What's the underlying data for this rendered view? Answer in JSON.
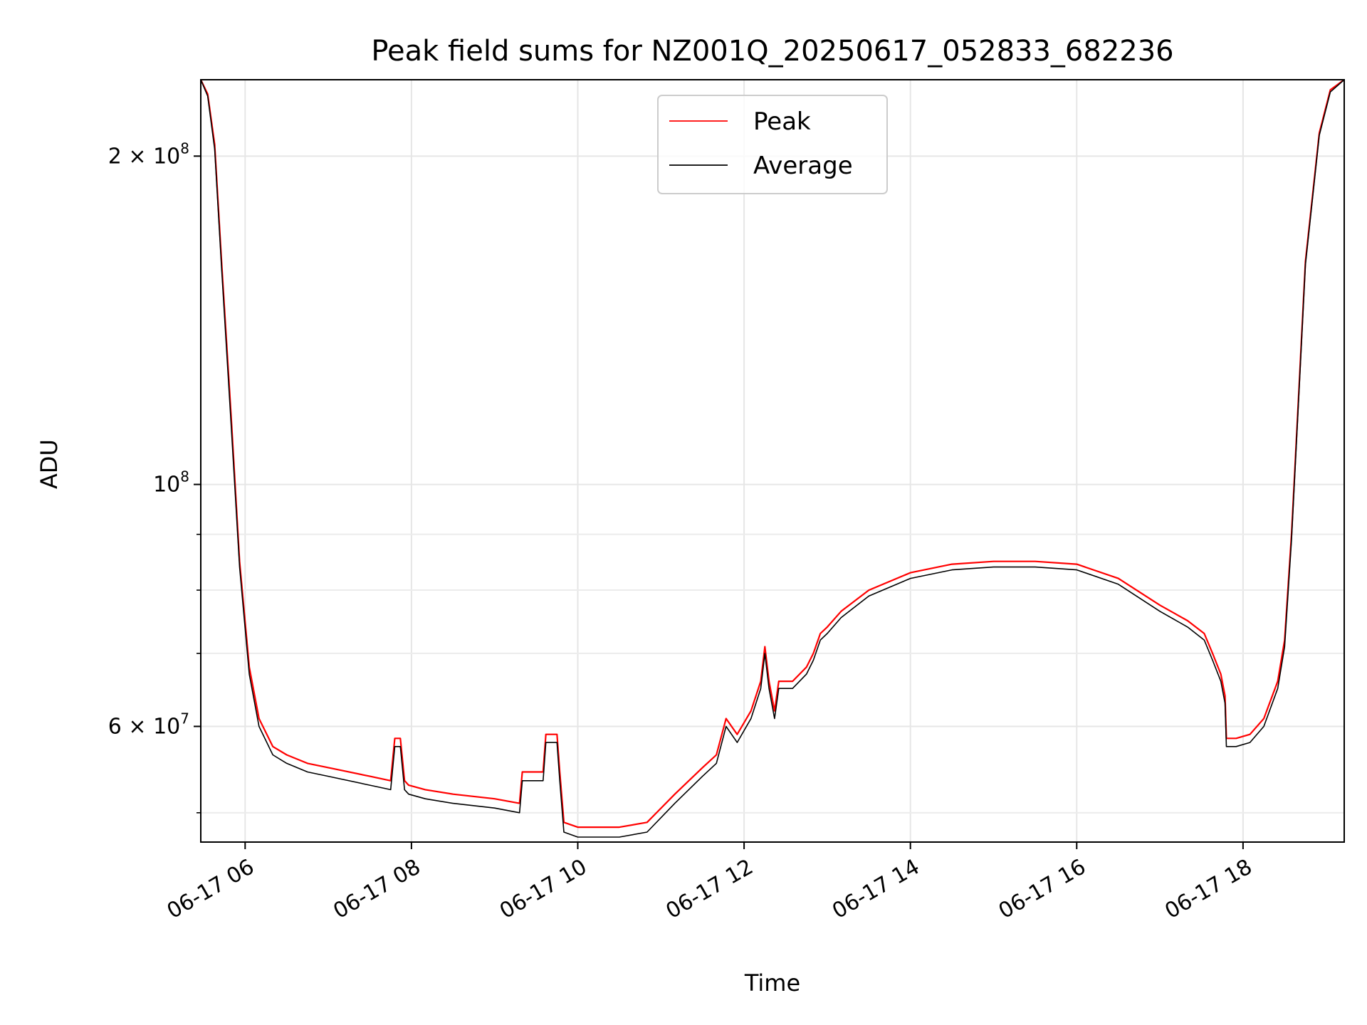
{
  "chart_data": {
    "type": "line",
    "title": "Peak field sums for NZ001Q_20250617_052833_682236",
    "xlabel": "Time",
    "ylabel": "ADU",
    "y_scale": "log",
    "x_range": [
      "06-17 05:28",
      "06-17 19:13"
    ],
    "ylim": [
      47000000,
      235000000
    ],
    "grid": true,
    "legend_position": "upper center",
    "x_ticks": [
      {
        "t": "06-17 06:00",
        "label": "06-17 06"
      },
      {
        "t": "06-17 08:00",
        "label": "06-17 08"
      },
      {
        "t": "06-17 10:00",
        "label": "06-17 10"
      },
      {
        "t": "06-17 12:00",
        "label": "06-17 12"
      },
      {
        "t": "06-17 14:00",
        "label": "06-17 14"
      },
      {
        "t": "06-17 16:00",
        "label": "06-17 16"
      },
      {
        "t": "06-17 18:00",
        "label": "06-17 18"
      }
    ],
    "y_major_ticks": [
      {
        "value": 200000000,
        "mantissa": "2",
        "exp": "8"
      },
      {
        "value": 100000000,
        "mantissa": "",
        "exp": "8"
      },
      {
        "value": 60000000,
        "mantissa": "6",
        "exp": "7"
      }
    ],
    "y_minor_ticks": [
      50000000,
      70000000,
      80000000,
      90000000
    ],
    "series": [
      {
        "name": "Peak",
        "color": "#ff0000",
        "x": [
          "06-17 05:28",
          "06-17 05:33",
          "06-17 05:38",
          "06-17 05:43",
          "06-17 05:50",
          "06-17 05:56",
          "06-17 06:03",
          "06-17 06:10",
          "06-17 06:20",
          "06-17 06:30",
          "06-17 06:45",
          "06-17 07:00",
          "06-17 07:30",
          "06-17 07:45",
          "06-17 07:48",
          "06-17 07:52",
          "06-17 07:55",
          "06-17 07:58",
          "06-17 08:10",
          "06-17 08:30",
          "06-17 09:00",
          "06-17 09:18",
          "06-17 09:20",
          "06-17 09:35",
          "06-17 09:37",
          "06-17 09:45",
          "06-17 09:47",
          "06-17 09:50",
          "06-17 10:00",
          "06-17 10:30",
          "06-17 10:50",
          "06-17 11:10",
          "06-17 11:30",
          "06-17 11:40",
          "06-17 11:47",
          "06-17 11:55",
          "06-17 12:05",
          "06-17 12:12",
          "06-17 12:15",
          "06-17 12:18",
          "06-17 12:22",
          "06-17 12:25",
          "06-17 12:35",
          "06-17 12:45",
          "06-17 12:50",
          "06-17 12:55",
          "06-17 13:00",
          "06-17 13:10",
          "06-17 13:30",
          "06-17 14:00",
          "06-17 14:30",
          "06-17 15:00",
          "06-17 15:30",
          "06-17 16:00",
          "06-17 16:30",
          "06-17 17:00",
          "06-17 17:20",
          "06-17 17:32",
          "06-17 17:38",
          "06-17 17:44",
          "06-17 17:47",
          "06-17 17:48",
          "06-17 17:55",
          "06-17 18:05",
          "06-17 18:15",
          "06-17 18:25",
          "06-17 18:30",
          "06-17 18:35",
          "06-17 18:40",
          "06-17 18:45",
          "06-17 18:55",
          "06-17 19:03",
          "06-17 19:13"
        ],
        "values": [
          235000000,
          228000000,
          205000000,
          160000000,
          115000000,
          85000000,
          68000000,
          61000000,
          57500000,
          56500000,
          55500000,
          55000000,
          54000000,
          53500000,
          58500000,
          58500000,
          53500000,
          53000000,
          52500000,
          52000000,
          51500000,
          51000000,
          54500000,
          54500000,
          59000000,
          59000000,
          54500000,
          49000000,
          48500000,
          48500000,
          49000000,
          52000000,
          55000000,
          56500000,
          61000000,
          59000000,
          62000000,
          66000000,
          71000000,
          66000000,
          62000000,
          66000000,
          66000000,
          68000000,
          70000000,
          73000000,
          74000000,
          76500000,
          80000000,
          83000000,
          84500000,
          85000000,
          85000000,
          84500000,
          82000000,
          77500000,
          75000000,
          73000000,
          70000000,
          67000000,
          64000000,
          58500000,
          58500000,
          59000000,
          61000000,
          66000000,
          72000000,
          90000000,
          120000000,
          160000000,
          210000000,
          230000000,
          235000000
        ]
      },
      {
        "name": "Average",
        "color": "#000000",
        "x": [
          "06-17 05:28",
          "06-17 05:33",
          "06-17 05:38",
          "06-17 05:43",
          "06-17 05:50",
          "06-17 05:56",
          "06-17 06:03",
          "06-17 06:10",
          "06-17 06:20",
          "06-17 06:30",
          "06-17 06:45",
          "06-17 07:00",
          "06-17 07:30",
          "06-17 07:45",
          "06-17 07:48",
          "06-17 07:52",
          "06-17 07:55",
          "06-17 07:58",
          "06-17 08:10",
          "06-17 08:30",
          "06-17 09:00",
          "06-17 09:18",
          "06-17 09:20",
          "06-17 09:35",
          "06-17 09:37",
          "06-17 09:45",
          "06-17 09:47",
          "06-17 09:50",
          "06-17 10:00",
          "06-17 10:30",
          "06-17 10:50",
          "06-17 11:10",
          "06-17 11:30",
          "06-17 11:40",
          "06-17 11:47",
          "06-17 11:55",
          "06-17 12:05",
          "06-17 12:12",
          "06-17 12:15",
          "06-17 12:18",
          "06-17 12:22",
          "06-17 12:25",
          "06-17 12:35",
          "06-17 12:45",
          "06-17 12:50",
          "06-17 12:55",
          "06-17 13:00",
          "06-17 13:10",
          "06-17 13:30",
          "06-17 14:00",
          "06-17 14:30",
          "06-17 15:00",
          "06-17 15:30",
          "06-17 16:00",
          "06-17 16:30",
          "06-17 17:00",
          "06-17 17:20",
          "06-17 17:32",
          "06-17 17:38",
          "06-17 17:44",
          "06-17 17:47",
          "06-17 17:48",
          "06-17 17:55",
          "06-17 18:05",
          "06-17 18:15",
          "06-17 18:25",
          "06-17 18:30",
          "06-17 18:35",
          "06-17 18:40",
          "06-17 18:45",
          "06-17 18:55",
          "06-17 19:03",
          "06-17 19:13"
        ],
        "values": [
          235000000,
          227000000,
          203000000,
          158000000,
          113000000,
          84000000,
          67000000,
          60000000,
          56500000,
          55500000,
          54500000,
          54000000,
          53000000,
          52500000,
          57500000,
          57500000,
          52500000,
          52000000,
          51500000,
          51000000,
          50500000,
          50000000,
          53500000,
          53500000,
          58000000,
          58000000,
          53500000,
          48000000,
          47500000,
          47500000,
          48000000,
          51000000,
          54000000,
          55500000,
          60000000,
          58000000,
          61000000,
          65000000,
          70000000,
          65000000,
          61000000,
          65000000,
          65000000,
          67000000,
          69000000,
          72000000,
          73000000,
          75500000,
          79000000,
          82000000,
          83500000,
          84000000,
          84000000,
          83500000,
          81000000,
          76500000,
          74000000,
          72000000,
          69000000,
          66000000,
          63000000,
          57500000,
          57500000,
          58000000,
          60000000,
          65000000,
          71000000,
          89000000,
          119000000,
          159000000,
          209000000,
          229000000,
          235000000
        ]
      }
    ]
  }
}
